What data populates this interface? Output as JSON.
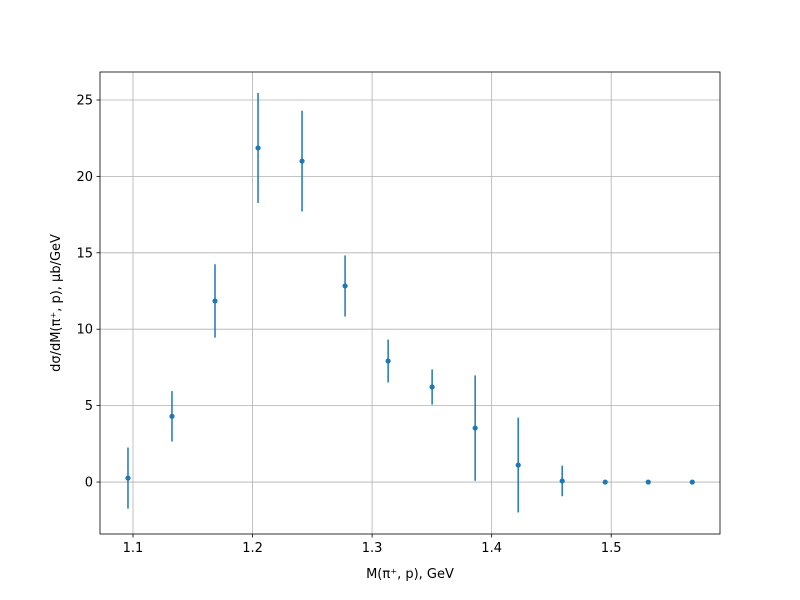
{
  "chart_data": {
    "type": "errorbar",
    "xlabel": "M(π⁺, p), GeV",
    "ylabel": "dσ/dM(π⁺, p), μb/GeV",
    "x": [
      1.0958,
      1.1326,
      1.1686,
      1.2046,
      1.2414,
      1.2774,
      1.3134,
      1.3502,
      1.3862,
      1.4222,
      1.459,
      1.495,
      1.531,
      1.5678
    ],
    "series": [
      {
        "color": "#1f77b4",
        "values": [
          0.26,
          4.3,
          11.85,
          21.86,
          21.0,
          12.83,
          7.92,
          6.22,
          3.53,
          1.11,
          0.07,
          0,
          0,
          0
        ],
        "errors": [
          2.0,
          1.65,
          2.4,
          3.6,
          3.3,
          2.0,
          1.4,
          1.15,
          3.45,
          3.1,
          1.0,
          0,
          0,
          0
        ]
      }
    ],
    "xlim": [
      1.0724,
      1.591
    ],
    "ylim": [
      -3.4,
      26.83
    ],
    "xticks": [
      1.1,
      1.2,
      1.3,
      1.4,
      1.5
    ],
    "yticks": [
      0,
      5,
      10,
      15,
      20,
      25
    ],
    "grid": true
  }
}
